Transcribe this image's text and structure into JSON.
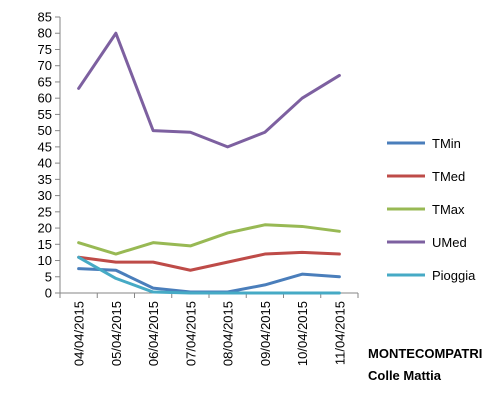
{
  "chart_data": {
    "type": "line",
    "title": "",
    "xlabel": "",
    "ylabel": "",
    "ylim": [
      0,
      85
    ],
    "ytick_step": 5,
    "grid": false,
    "legend_position": "right",
    "categories": [
      "04/04/2015",
      "05/04/2015",
      "06/04/2015",
      "07/04/2015",
      "08/04/2015",
      "09/04/2015",
      "10/04/2015",
      "11/04/2015"
    ],
    "series": [
      {
        "name": "TMin",
        "color": "#4a7ebb",
        "values": [
          7.5,
          7,
          1.5,
          0.3,
          0.3,
          2.5,
          5.8,
          5
        ]
      },
      {
        "name": "TMed",
        "color": "#be4b48",
        "values": [
          11,
          9.5,
          9.5,
          7,
          9.5,
          12,
          12.5,
          12
        ]
      },
      {
        "name": "TMax",
        "color": "#98b954",
        "values": [
          15.5,
          12,
          15.5,
          14.5,
          18.5,
          21,
          20.5,
          19
        ]
      },
      {
        "name": "UMed",
        "color": "#7d60a0",
        "values": [
          63,
          80,
          50,
          49.5,
          45,
          49.5,
          60,
          67
        ]
      },
      {
        "name": "Pioggia",
        "color": "#46aac5",
        "values": [
          11,
          4.5,
          0.3,
          0,
          0,
          0,
          0,
          0
        ]
      }
    ],
    "annotation": [
      "MONTECOMPATRI",
      "Colle Mattia"
    ]
  }
}
